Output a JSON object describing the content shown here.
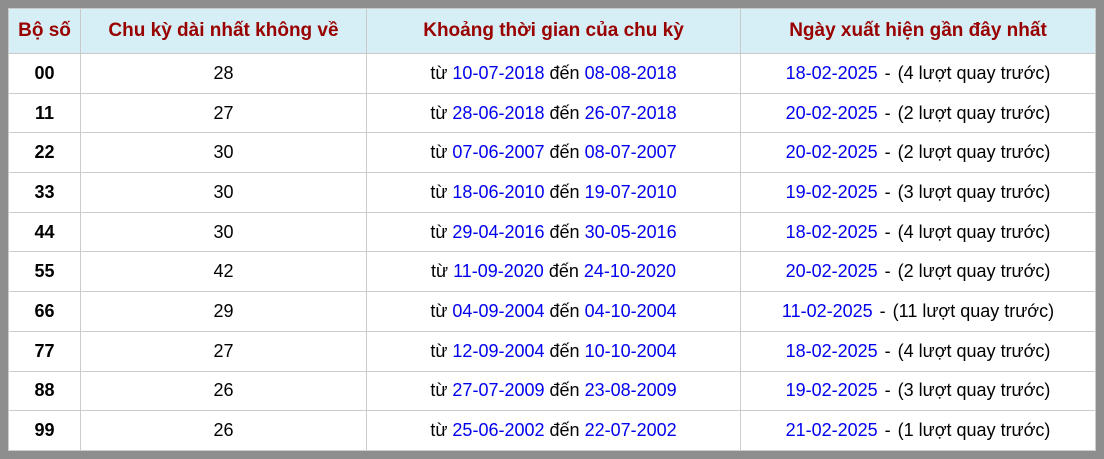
{
  "colors": {
    "outer_border": "#8e8e8e",
    "header_bg": "#d6eef6",
    "header_text": "#990000",
    "grid_line": "#cccccc",
    "link_blue": "#0000ee",
    "body_text": "#000000"
  },
  "table": {
    "headers": {
      "pair": "Bộ số",
      "cycle": "Chu kỳ dài nhất không về",
      "range": "Khoảng thời gian của chu kỳ",
      "last": "Ngày xuất hiện gần đây nhất"
    },
    "labels": {
      "from": "từ",
      "to": "đến",
      "separator": "-"
    },
    "rows": [
      {
        "pair": "00",
        "cycle": "28",
        "from": "10-07-2018",
        "to": "08-08-2018",
        "last": "18-02-2025",
        "ago": "(4 lượt quay trước)"
      },
      {
        "pair": "11",
        "cycle": "27",
        "from": "28-06-2018",
        "to": "26-07-2018",
        "last": "20-02-2025",
        "ago": "(2 lượt quay trước)"
      },
      {
        "pair": "22",
        "cycle": "30",
        "from": "07-06-2007",
        "to": "08-07-2007",
        "last": "20-02-2025",
        "ago": "(2 lượt quay trước)"
      },
      {
        "pair": "33",
        "cycle": "30",
        "from": "18-06-2010",
        "to": "19-07-2010",
        "last": "19-02-2025",
        "ago": "(3 lượt quay trước)"
      },
      {
        "pair": "44",
        "cycle": "30",
        "from": "29-04-2016",
        "to": "30-05-2016",
        "last": "18-02-2025",
        "ago": "(4 lượt quay trước)"
      },
      {
        "pair": "55",
        "cycle": "42",
        "from": "11-09-2020",
        "to": "24-10-2020",
        "last": "20-02-2025",
        "ago": "(2 lượt quay trước)"
      },
      {
        "pair": "66",
        "cycle": "29",
        "from": "04-09-2004",
        "to": "04-10-2004",
        "last": "11-02-2025",
        "ago": "(11 lượt quay trước)"
      },
      {
        "pair": "77",
        "cycle": "27",
        "from": "12-09-2004",
        "to": "10-10-2004",
        "last": "18-02-2025",
        "ago": "(4 lượt quay trước)"
      },
      {
        "pair": "88",
        "cycle": "26",
        "from": "27-07-2009",
        "to": "23-08-2009",
        "last": "19-02-2025",
        "ago": "(3 lượt quay trước)"
      },
      {
        "pair": "99",
        "cycle": "26",
        "from": "25-06-2002",
        "to": "22-07-2002",
        "last": "21-02-2025",
        "ago": "(1 lượt quay trước)"
      }
    ]
  }
}
